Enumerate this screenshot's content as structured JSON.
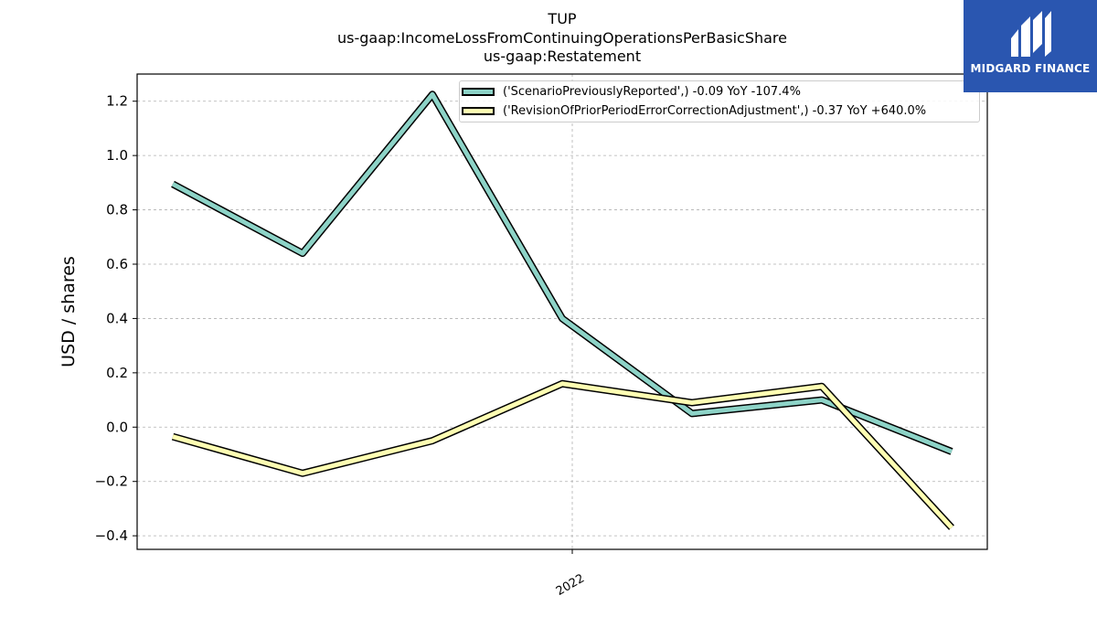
{
  "header": {
    "title_line1": "TUP",
    "title_line2": "us-gaap:IncomeLossFromContinuingOperationsPerBasicShare",
    "title_line3": "us-gaap:Restatement"
  },
  "logo": {
    "text": "MIDGARD FINANCE",
    "color": "#2a56b0"
  },
  "chart_data": {
    "type": "line",
    "ylabel": "USD / shares",
    "ylim": [
      -0.45,
      1.3
    ],
    "yticks": [
      -0.4,
      -0.2,
      0.0,
      0.2,
      0.4,
      0.6,
      0.8,
      1.0,
      1.2
    ],
    "ytick_labels": [
      "−0.4",
      "−0.2",
      "0.0",
      "0.2",
      "0.4",
      "0.6",
      "0.8",
      "1.0",
      "1.2"
    ],
    "xtick_labels": [
      "2022"
    ],
    "grid": true,
    "legend_position": "top-right",
    "series": [
      {
        "name": "('ScenarioPreviouslyReported',) -0.09 YoY -107.4%",
        "color": "#8dd3c7",
        "values": [
          0.895,
          0.64,
          1.225,
          0.4,
          0.05,
          0.1,
          -0.09
        ]
      },
      {
        "name": "('RevisionOfPriorPeriodErrorCorrectionAdjustment',) -0.37 YoY +640.0%",
        "color": "#ffffb3",
        "values": [
          -0.035,
          -0.17,
          -0.05,
          0.16,
          0.09,
          0.15,
          -0.37
        ]
      }
    ]
  }
}
